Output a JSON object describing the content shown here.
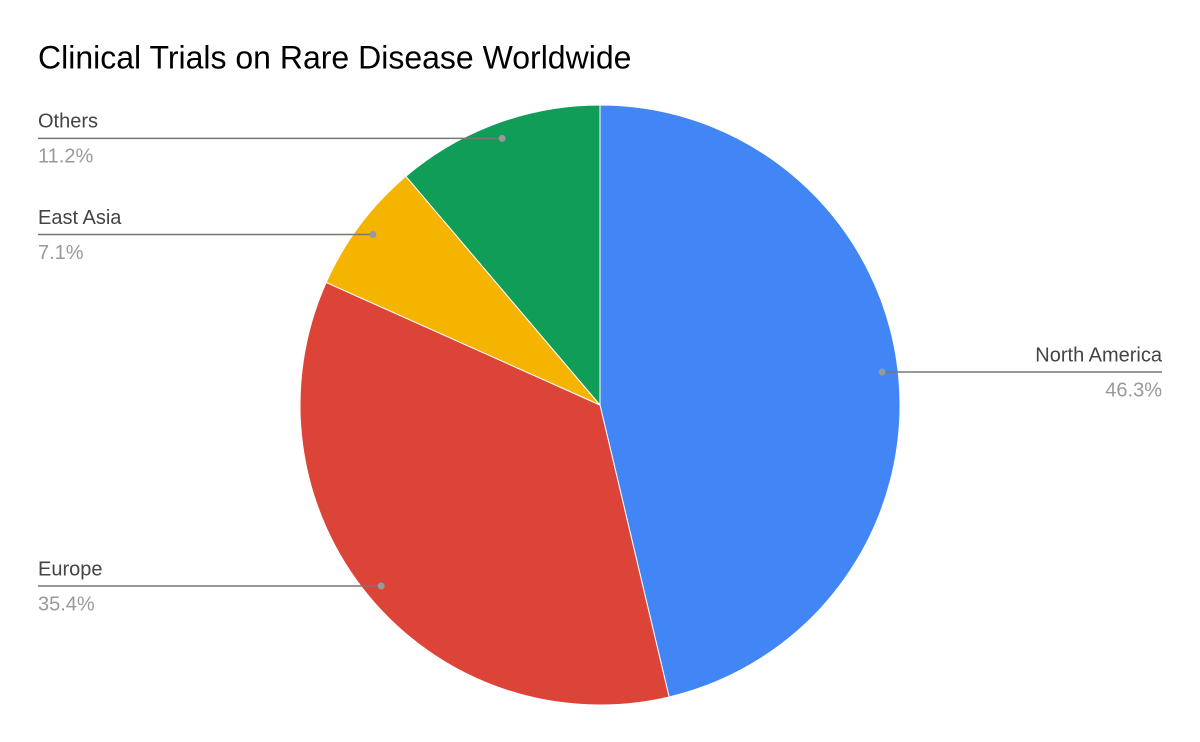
{
  "chart_data": {
    "type": "pie",
    "title": "Clinical Trials on Rare Disease Worldwide",
    "categories": [
      "North America",
      "Europe",
      "East Asia",
      "Others"
    ],
    "values": [
      46.3,
      35.4,
      7.1,
      11.2
    ],
    "value_labels": [
      "46.3%",
      "35.4%",
      "7.1%",
      "11.2%"
    ],
    "colors": [
      "#4285f4",
      "#db4437",
      "#f4b400",
      "#0f9d58"
    ]
  }
}
